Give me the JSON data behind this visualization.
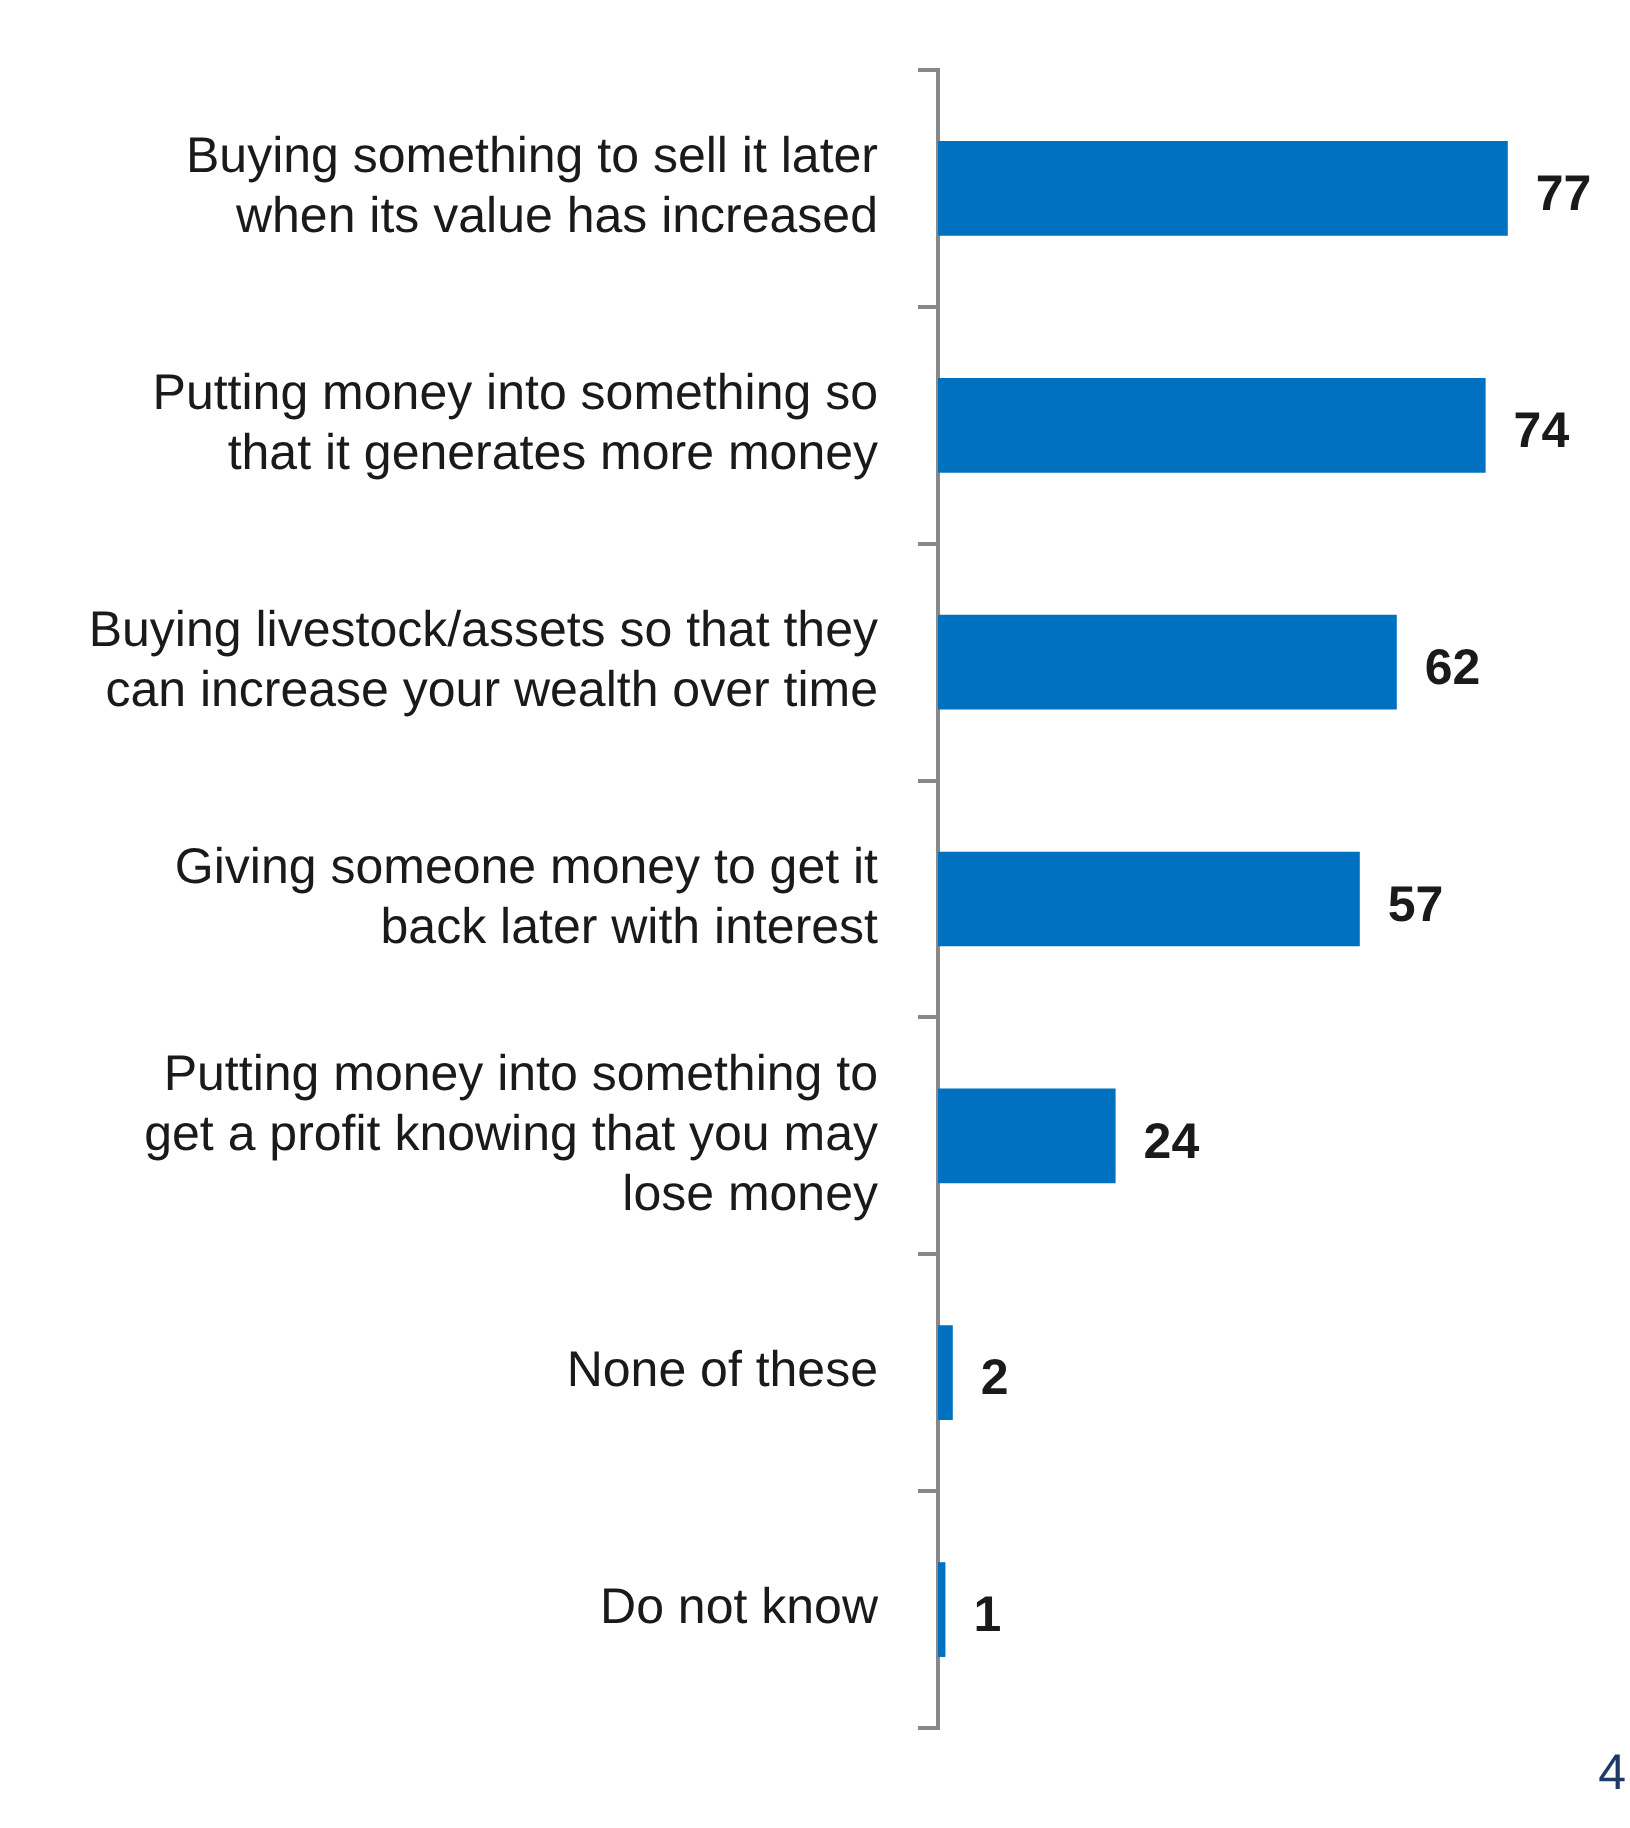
{
  "chart_data": {
    "type": "bar",
    "orientation": "horizontal",
    "categories": [
      "Buying something to sell it later when its value has increased",
      "Putting money into something so that it generates more money",
      "Buying livestock/assets so that they can increase your wealth over time",
      "Giving someone money to get it back later with interest",
      "Putting money into something to get a profit knowing that you may lose money",
      "None of these",
      "Do not know"
    ],
    "values": [
      77,
      74,
      62,
      57,
      24,
      2,
      1
    ],
    "color": "#0070c0",
    "data_labels": true,
    "legend": false,
    "grid": false,
    "tick_labels": "y",
    "annotations": [
      {
        "text": "4"
      }
    ]
  }
}
